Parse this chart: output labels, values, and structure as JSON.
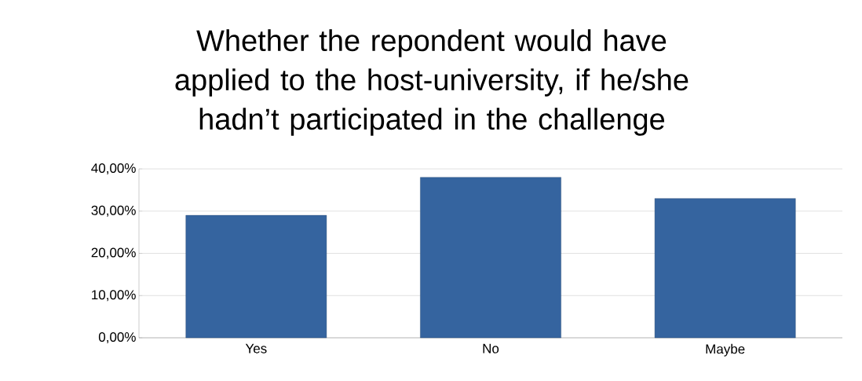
{
  "chart_data": {
    "type": "bar",
    "title": "Whether the repondent would have applied to the host-university, if he/she hadn’t participated in the challenge",
    "categories": [
      "Yes",
      "No",
      "Maybe"
    ],
    "values": [
      29,
      38,
      33
    ],
    "color": "#35649f",
    "ylim": [
      0,
      40
    ],
    "yticks": [
      {
        "value": 0,
        "label": "0,00%"
      },
      {
        "value": 10,
        "label": "10,00%"
      },
      {
        "value": 20,
        "label": "20,00%"
      },
      {
        "value": 30,
        "label": "30,00%"
      },
      {
        "value": 40,
        "label": "40,00%"
      }
    ],
    "grid": "y"
  }
}
